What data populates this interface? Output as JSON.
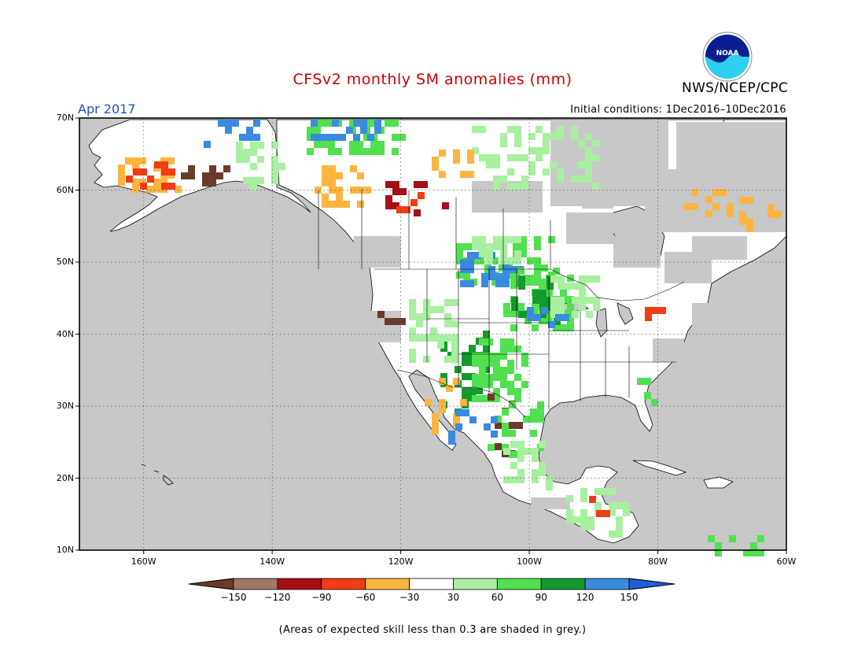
{
  "header": {
    "title": "CFSv2 monthly SM anomalies (mm)",
    "period": "Apr 2017",
    "initial_conditions": "Initial conditions: 1Dec2016–10Dec2016",
    "agency": "NWS/NCEP/CPC",
    "logo_text": "NOAA"
  },
  "colors": {
    "title": "#cc0000",
    "period": "#1f4fd6",
    "ocean_grey": "#c8c8c8",
    "land": "#ffffff",
    "coast": "#000000"
  },
  "map": {
    "lat_labels": [
      "70N",
      "60N",
      "50N",
      "40N",
      "30N",
      "20N",
      "10N"
    ],
    "lon_labels": [
      "160W",
      "140W",
      "120W",
      "100W",
      "80W",
      "60W"
    ],
    "lat_range": [
      10,
      70
    ],
    "lon_range": [
      -170,
      -60
    ]
  },
  "legend": {
    "labels": [
      "−150",
      "−120",
      "−90",
      "−60",
      "−30",
      "30",
      "60",
      "90",
      "120",
      "150"
    ],
    "colors": [
      "#6b3a2a",
      "#a07868",
      "#a50f15",
      "#f03c14",
      "#fdb540",
      "#ffffff",
      "#a8f0a0",
      "#50e050",
      "#139a2c",
      "#3a8ae0",
      "#1d5fd6"
    ]
  },
  "footnote": "(Areas of expected skill less than 0.3 are shaded in grey.)"
}
